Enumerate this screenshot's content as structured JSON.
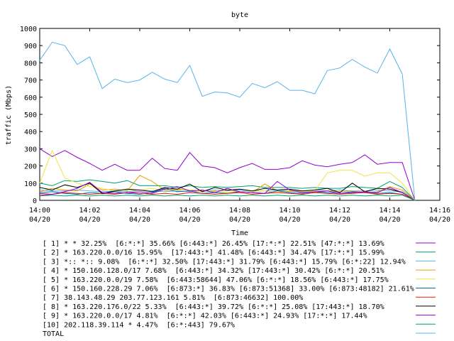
{
  "chart_data": {
    "type": "line",
    "title": "byte",
    "xlabel": "Time",
    "ylabel": "traffic (Mbps)",
    "ylim": [
      0,
      1000
    ],
    "xlim": [
      0,
      16
    ],
    "y_ticks": [
      0,
      100,
      200,
      300,
      400,
      500,
      600,
      700,
      800,
      900,
      1000
    ],
    "x_ticks": [
      {
        "x": 0,
        "time": "14:00",
        "date": "04/20"
      },
      {
        "x": 2,
        "time": "14:02",
        "date": "04/20"
      },
      {
        "x": 4,
        "time": "14:04",
        "date": "04/20"
      },
      {
        "x": 6,
        "time": "14:06",
        "date": "04/20"
      },
      {
        "x": 8,
        "time": "14:08",
        "date": "04/20"
      },
      {
        "x": 10,
        "time": "14:10",
        "date": "04/20"
      },
      {
        "x": 12,
        "time": "14:12",
        "date": "04/20"
      },
      {
        "x": 14,
        "time": "14:14",
        "date": "04/20"
      },
      {
        "x": 16,
        "time": "14:16",
        "date": "04/20"
      }
    ],
    "x": [
      0,
      0.5,
      1,
      1.5,
      2,
      2.5,
      3,
      3.5,
      4,
      4.5,
      5,
      5.5,
      6,
      6.5,
      7,
      7.5,
      8,
      8.5,
      9,
      9.5,
      10,
      10.5,
      11,
      11.5,
      12,
      12.5,
      13,
      13.5,
      14,
      14.5,
      15
    ],
    "grid": false,
    "legend_placement": "bottom",
    "series": [
      {
        "name": "[ 1] * * 32.25%  [6:*:*] 35.66% [6:443:*] 26.45% [17:*:*] 22.51% [47:*:*] 13.69%",
        "color": "#9400d3",
        "values": [
          300,
          255,
          290,
          250,
          215,
          175,
          210,
          175,
          175,
          245,
          185,
          175,
          278,
          200,
          190,
          160,
          190,
          215,
          180,
          180,
          190,
          230,
          205,
          195,
          210,
          220,
          265,
          210,
          220,
          220,
          0
        ]
      },
      {
        "name": "[ 2] * 163.220.0.0/16 15.95%  [17:443:*] 41.48% [6:443:*] 34.47% [17:*:*] 15.99%",
        "color": "#009e73",
        "values": [
          100,
          85,
          115,
          110,
          120,
          110,
          100,
          115,
          85,
          85,
          85,
          75,
          85,
          75,
          80,
          75,
          80,
          85,
          75,
          75,
          75,
          70,
          75,
          70,
          70,
          80,
          75,
          70,
          110,
          75,
          0
        ]
      },
      {
        "name": "[ 3] *:: *:: 9.08%  [6:*:*] 32.50% [17:443:*] 31.79% [6:443:*] 15.79% [6:*:22] 12.94%",
        "color": "#56b4e9",
        "values": [
          60,
          55,
          55,
          60,
          55,
          50,
          55,
          50,
          60,
          55,
          50,
          55,
          50,
          55,
          60,
          55,
          60,
          55,
          55,
          60,
          55,
          55,
          60,
          55,
          60,
          55,
          55,
          60,
          55,
          50,
          0
        ]
      },
      {
        "name": "[ 4] * 150.160.128.0/17 7.68%  [6:443:*] 34.32% [17:443:*] 30.42% [6:*:*] 20.51%",
        "color": "#e69f00",
        "values": [
          50,
          70,
          60,
          55,
          95,
          60,
          65,
          55,
          145,
          110,
          60,
          65,
          60,
          55,
          50,
          60,
          50,
          45,
          95,
          55,
          50,
          55,
          45,
          55,
          50,
          55,
          45,
          50,
          80,
          60,
          0
        ]
      },
      {
        "name": "[ 5] * 163.220.0.0/19 7.58%  [6:443:58644] 47.06% [6:*:*] 18.56% [6:443:*] 17.75%",
        "color": "#f0e442",
        "values": [
          100,
          290,
          130,
          100,
          80,
          70,
          55,
          60,
          60,
          70,
          55,
          60,
          60,
          50,
          55,
          45,
          50,
          50,
          55,
          45,
          55,
          50,
          55,
          160,
          175,
          175,
          140,
          160,
          160,
          100,
          0
        ]
      },
      {
        "name": "[ 6] * 150.160.228.29 7.06%  [6:873:*] 36.83% [6:873:51368] 33.00% [6:873:48182] 21.61%",
        "color": "#0072b2",
        "values": [
          45,
          50,
          40,
          35,
          45,
          40,
          50,
          40,
          35,
          45,
          70,
          50,
          55,
          40,
          45,
          40,
          50,
          45,
          40,
          55,
          45,
          40,
          50,
          45,
          40,
          50,
          45,
          40,
          45,
          35,
          0
        ]
      },
      {
        "name": "[ 7] 38.143.48.29 203.77.123.161 5.81%  [6:873:46632] 100.00%",
        "color": "#e51e10",
        "values": [
          30,
          35,
          45,
          40,
          35,
          40,
          35,
          45,
          40,
          35,
          40,
          35,
          45,
          40,
          35,
          40,
          45,
          35,
          40,
          45,
          40,
          35,
          45,
          40,
          35,
          40,
          45,
          35,
          40,
          35,
          0
        ]
      },
      {
        "name": "[ 8] * 163.220.176.0/22 5.33%  [6:443:*] 39.72% [6:*:*] 25.08% [17:443:*] 18.70%",
        "color": "#000000",
        "values": [
          75,
          60,
          90,
          75,
          100,
          40,
          55,
          65,
          60,
          50,
          75,
          65,
          95,
          50,
          75,
          60,
          65,
          55,
          70,
          60,
          65,
          55,
          60,
          70,
          45,
          100,
          50,
          70,
          65,
          45,
          0
        ]
      },
      {
        "name": "[ 9] * 163.220.0.0/17 4.81%  [6:*:*] 42.03% [6:443:*] 24.93% [17:*:*] 17.44%",
        "color": "#9400d3",
        "values": [
          40,
          35,
          50,
          70,
          105,
          45,
          40,
          45,
          50,
          40,
          65,
          80,
          55,
          60,
          45,
          70,
          50,
          45,
          40,
          110,
          60,
          45,
          50,
          55,
          40,
          45,
          50,
          45,
          75,
          45,
          0
        ]
      },
      {
        "name": "[10] 202.118.39.114 * 4.47%  [6:*:443] 79.67%",
        "color": "#009e73",
        "values": [
          25,
          30,
          25,
          30,
          25,
          30,
          25,
          30,
          25,
          30,
          25,
          30,
          25,
          30,
          25,
          30,
          25,
          30,
          25,
          30,
          25,
          30,
          25,
          30,
          25,
          30,
          25,
          30,
          25,
          30,
          0
        ]
      },
      {
        "name": "TOTAL",
        "color": "#56b4e9",
        "values": [
          815,
          920,
          900,
          790,
          835,
          650,
          705,
          685,
          700,
          745,
          705,
          685,
          785,
          605,
          630,
          625,
          600,
          680,
          655,
          690,
          640,
          640,
          620,
          755,
          770,
          820,
          775,
          740,
          880,
          735,
          0
        ]
      }
    ]
  }
}
